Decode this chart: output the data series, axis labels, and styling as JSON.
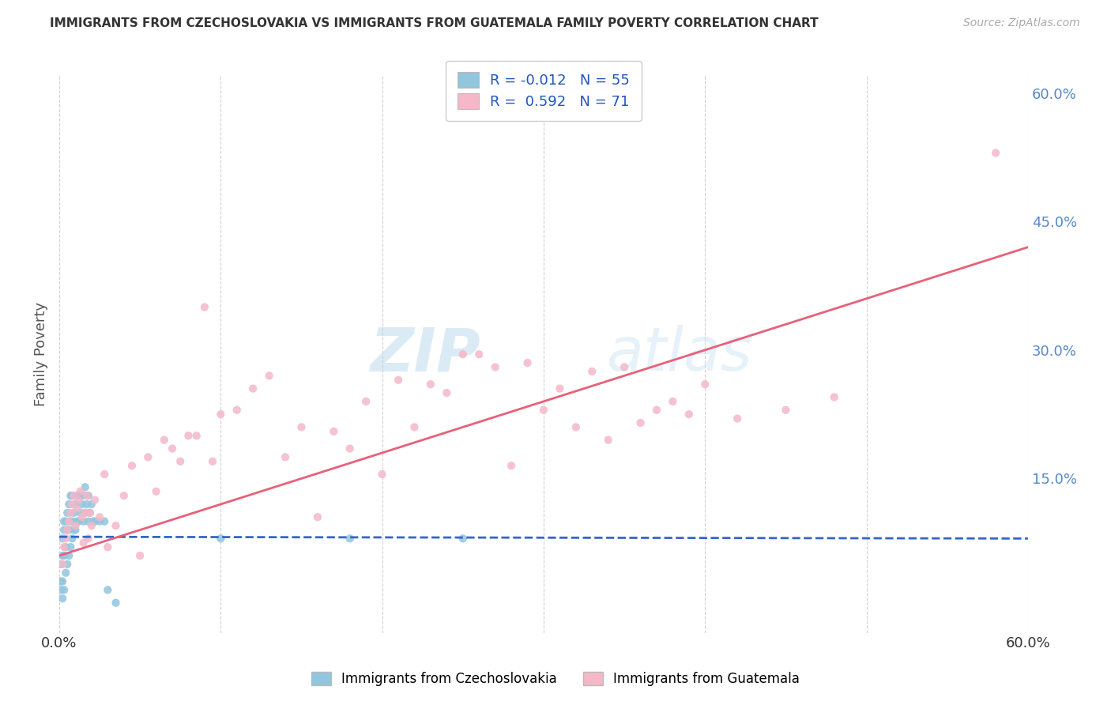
{
  "title": "IMMIGRANTS FROM CZECHOSLOVAKIA VS IMMIGRANTS FROM GUATEMALA FAMILY POVERTY CORRELATION CHART",
  "source": "Source: ZipAtlas.com",
  "ylabel": "Family Poverty",
  "legend_blue_r": "R = -0.012",
  "legend_blue_n": "N = 55",
  "legend_pink_r": "R =  0.592",
  "legend_pink_n": "N = 71",
  "legend_label_blue": "Immigrants from Czechoslovakia",
  "legend_label_pink": "Immigrants from Guatemala",
  "watermark_zip": "ZIP",
  "watermark_atlas": "atlas",
  "blue_color": "#92c5de",
  "pink_color": "#f4b8c8",
  "blue_line_color": "#3366cc",
  "pink_line_color": "#e8607a",
  "blue_scatter": {
    "x": [
      0.001,
      0.001,
      0.001,
      0.002,
      0.002,
      0.002,
      0.002,
      0.003,
      0.003,
      0.003,
      0.003,
      0.004,
      0.004,
      0.004,
      0.005,
      0.005,
      0.005,
      0.006,
      0.006,
      0.006,
      0.007,
      0.007,
      0.007,
      0.008,
      0.008,
      0.008,
      0.009,
      0.009,
      0.01,
      0.01,
      0.011,
      0.011,
      0.012,
      0.012,
      0.013,
      0.013,
      0.014,
      0.015,
      0.015,
      0.016,
      0.016,
      0.017,
      0.018,
      0.018,
      0.019,
      0.02,
      0.021,
      0.022,
      0.025,
      0.028,
      0.03,
      0.035,
      0.1,
      0.18,
      0.25
    ],
    "y": [
      0.02,
      0.03,
      0.05,
      0.01,
      0.03,
      0.06,
      0.08,
      0.02,
      0.06,
      0.09,
      0.1,
      0.04,
      0.07,
      0.1,
      0.05,
      0.09,
      0.11,
      0.06,
      0.09,
      0.12,
      0.07,
      0.1,
      0.13,
      0.08,
      0.1,
      0.13,
      0.09,
      0.11,
      0.09,
      0.12,
      0.1,
      0.13,
      0.1,
      0.13,
      0.11,
      0.13,
      0.12,
      0.1,
      0.13,
      0.11,
      0.14,
      0.12,
      0.1,
      0.13,
      0.11,
      0.12,
      0.1,
      0.1,
      0.1,
      0.1,
      0.02,
      0.005,
      0.08,
      0.08,
      0.08
    ]
  },
  "pink_scatter": {
    "x": [
      0.002,
      0.003,
      0.004,
      0.005,
      0.006,
      0.007,
      0.008,
      0.009,
      0.01,
      0.011,
      0.012,
      0.013,
      0.014,
      0.015,
      0.016,
      0.017,
      0.018,
      0.019,
      0.02,
      0.022,
      0.025,
      0.028,
      0.03,
      0.035,
      0.04,
      0.045,
      0.05,
      0.055,
      0.06,
      0.065,
      0.07,
      0.075,
      0.08,
      0.085,
      0.09,
      0.095,
      0.1,
      0.11,
      0.12,
      0.13,
      0.14,
      0.15,
      0.16,
      0.17,
      0.18,
      0.19,
      0.2,
      0.21,
      0.22,
      0.23,
      0.24,
      0.25,
      0.26,
      0.27,
      0.28,
      0.29,
      0.3,
      0.31,
      0.32,
      0.33,
      0.34,
      0.35,
      0.36,
      0.37,
      0.38,
      0.39,
      0.4,
      0.42,
      0.45,
      0.48,
      0.58
    ],
    "y": [
      0.05,
      0.07,
      0.08,
      0.09,
      0.1,
      0.11,
      0.12,
      0.13,
      0.095,
      0.115,
      0.125,
      0.135,
      0.105,
      0.075,
      0.11,
      0.13,
      0.08,
      0.11,
      0.095,
      0.125,
      0.105,
      0.155,
      0.07,
      0.095,
      0.13,
      0.165,
      0.06,
      0.175,
      0.135,
      0.195,
      0.185,
      0.17,
      0.2,
      0.2,
      0.35,
      0.17,
      0.225,
      0.23,
      0.255,
      0.27,
      0.175,
      0.21,
      0.105,
      0.205,
      0.185,
      0.24,
      0.155,
      0.265,
      0.21,
      0.26,
      0.25,
      0.295,
      0.295,
      0.28,
      0.165,
      0.285,
      0.23,
      0.255,
      0.21,
      0.275,
      0.195,
      0.28,
      0.215,
      0.23,
      0.24,
      0.225,
      0.26,
      0.22,
      0.23,
      0.245,
      0.53
    ]
  },
  "blue_trendline": {
    "x_start": 0.0,
    "x_end": 0.6,
    "y_start": 0.082,
    "y_end": 0.08
  },
  "pink_trendline": {
    "x_start": 0.0,
    "x_end": 0.6,
    "y_start": 0.06,
    "y_end": 0.42
  },
  "xlim": [
    0.0,
    0.6
  ],
  "ylim": [
    -0.03,
    0.62
  ],
  "x_tick_positions": [
    0.0,
    0.1,
    0.2,
    0.3,
    0.4,
    0.5,
    0.6
  ],
  "x_tick_labels": [
    "0.0%",
    "",
    "",
    "",
    "",
    "",
    "60.0%"
  ],
  "y_tick_positions": [
    0.0,
    0.15,
    0.3,
    0.45,
    0.6
  ],
  "y_tick_labels": [
    "",
    "15.0%",
    "30.0%",
    "45.0%",
    "60.0%"
  ],
  "background_color": "#ffffff",
  "grid_color": "#cccccc",
  "title_fontsize": 11,
  "axis_fontsize": 13,
  "scatter_size": 55
}
